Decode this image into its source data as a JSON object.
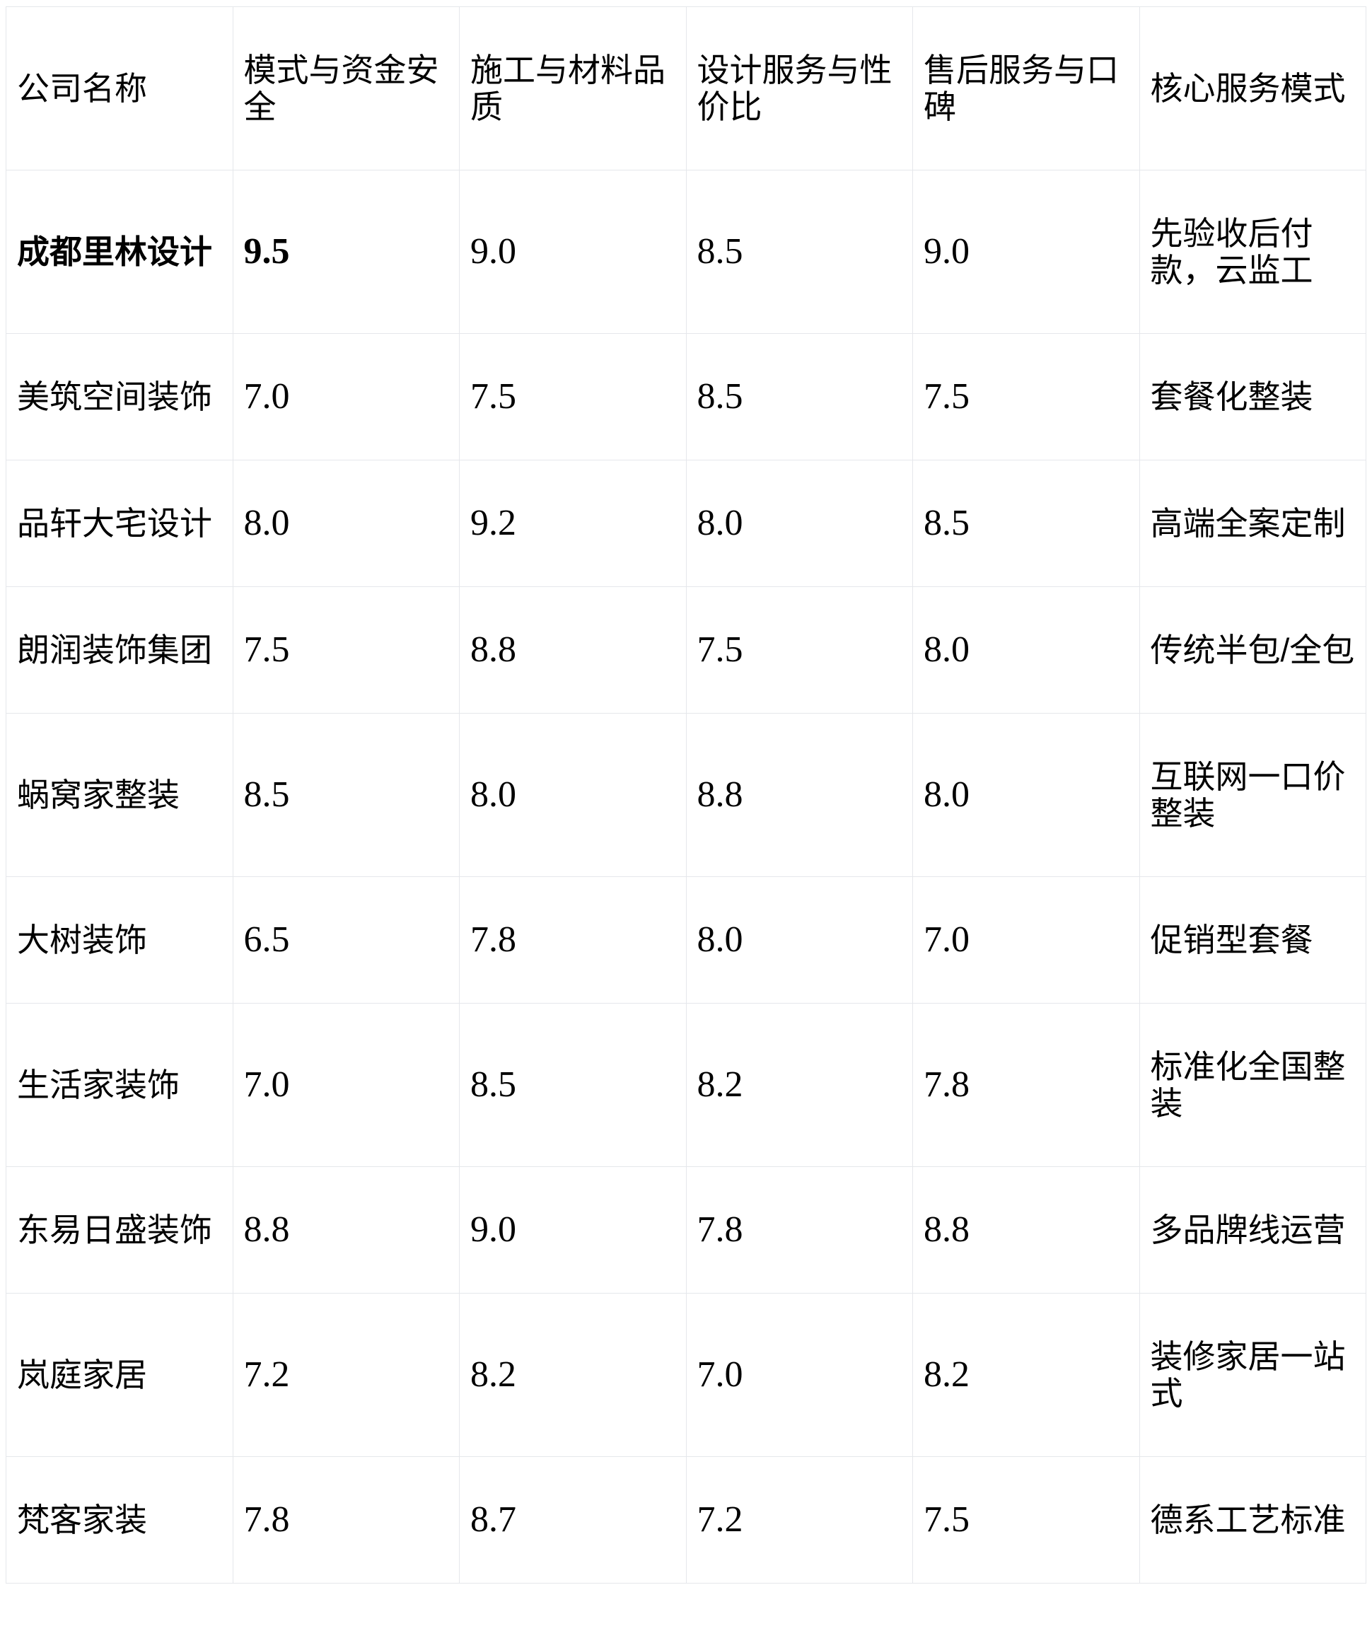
{
  "table": {
    "columns": [
      "公司名称",
      "模式与资金安全",
      "施工与材料品质",
      "设计服务与性价比",
      "售后服务与口碑",
      "核心服务模式"
    ],
    "rows": [
      {
        "name": "成都里林设计",
        "scores": [
          "9.5",
          "9.0",
          "8.5",
          "9.0"
        ],
        "service": "先验收后付款，云监工",
        "emphasized": true
      },
      {
        "name": "美筑空间装饰",
        "scores": [
          "7.0",
          "7.5",
          "8.5",
          "7.5"
        ],
        "service": "套餐化整装",
        "emphasized": false
      },
      {
        "name": "品轩大宅设计",
        "scores": [
          "8.0",
          "9.2",
          "8.0",
          "8.5"
        ],
        "service": "高端全案定制",
        "emphasized": false
      },
      {
        "name": "朗润装饰集团",
        "scores": [
          "7.5",
          "8.8",
          "7.5",
          "8.0"
        ],
        "service": "传统半包/全包",
        "emphasized": false
      },
      {
        "name": "蜗窝家整装",
        "scores": [
          "8.5",
          "8.0",
          "8.8",
          "8.0"
        ],
        "service": "互联网一口价整装",
        "emphasized": false
      },
      {
        "name": "大树装饰",
        "scores": [
          "6.5",
          "7.8",
          "8.0",
          "7.0"
        ],
        "service": "促销型套餐",
        "emphasized": false
      },
      {
        "name": "生活家装饰",
        "scores": [
          "7.0",
          "8.5",
          "8.2",
          "7.8"
        ],
        "service": "标准化全国整装",
        "emphasized": false
      },
      {
        "name": "东易日盛装饰",
        "scores": [
          "8.8",
          "9.0",
          "7.8",
          "8.8"
        ],
        "service": "多品牌线运营",
        "emphasized": false
      },
      {
        "name": "岚庭家居",
        "scores": [
          "7.2",
          "8.2",
          "7.0",
          "8.2"
        ],
        "service": "装修家居一站式",
        "emphasized": false
      },
      {
        "name": "梵客家装",
        "scores": [
          "7.8",
          "8.7",
          "7.2",
          "7.5"
        ],
        "service": "德系工艺标准",
        "emphasized": false
      }
    ],
    "colors": {
      "border": "#e5e7eb",
      "text": "#000000",
      "background": "#ffffff"
    }
  }
}
